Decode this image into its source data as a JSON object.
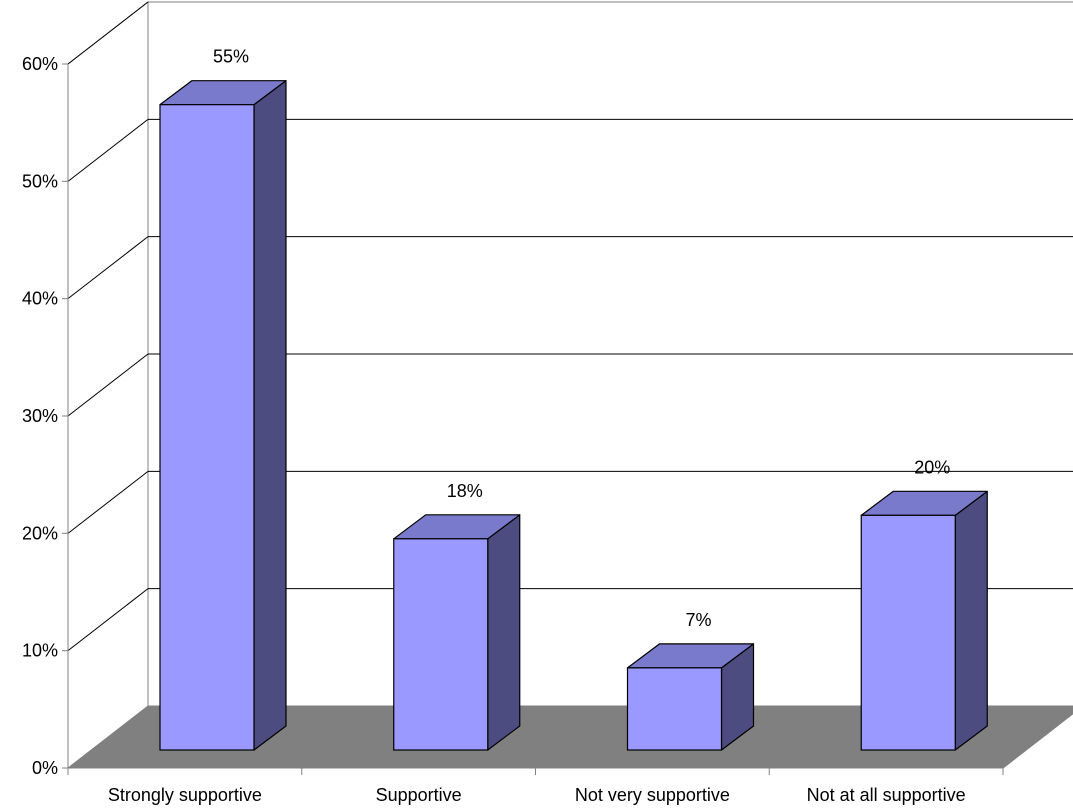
{
  "chart_data": {
    "type": "bar",
    "categories": [
      "Strongly supportive",
      "Supportive",
      "Not very supportive",
      "Not at all supportive"
    ],
    "values": [
      55,
      18,
      7,
      20
    ],
    "data_labels": [
      "55%",
      "18%",
      "7%",
      "20%"
    ],
    "title": "",
    "xlabel": "",
    "ylabel": "",
    "ylim": [
      0,
      60
    ],
    "yticks": [
      0,
      10,
      20,
      30,
      40,
      50,
      60
    ],
    "ytick_labels": [
      "0%",
      "10%",
      "20%",
      "30%",
      "40%",
      "50%",
      "60%"
    ],
    "grid": true,
    "legend": "none",
    "style": "3d-column",
    "colors": {
      "bar_front": "#9999ff",
      "bar_top": "#7a7acc",
      "bar_side": "#4c4c80",
      "floor": "#808080",
      "gridline": "#000000"
    }
  }
}
